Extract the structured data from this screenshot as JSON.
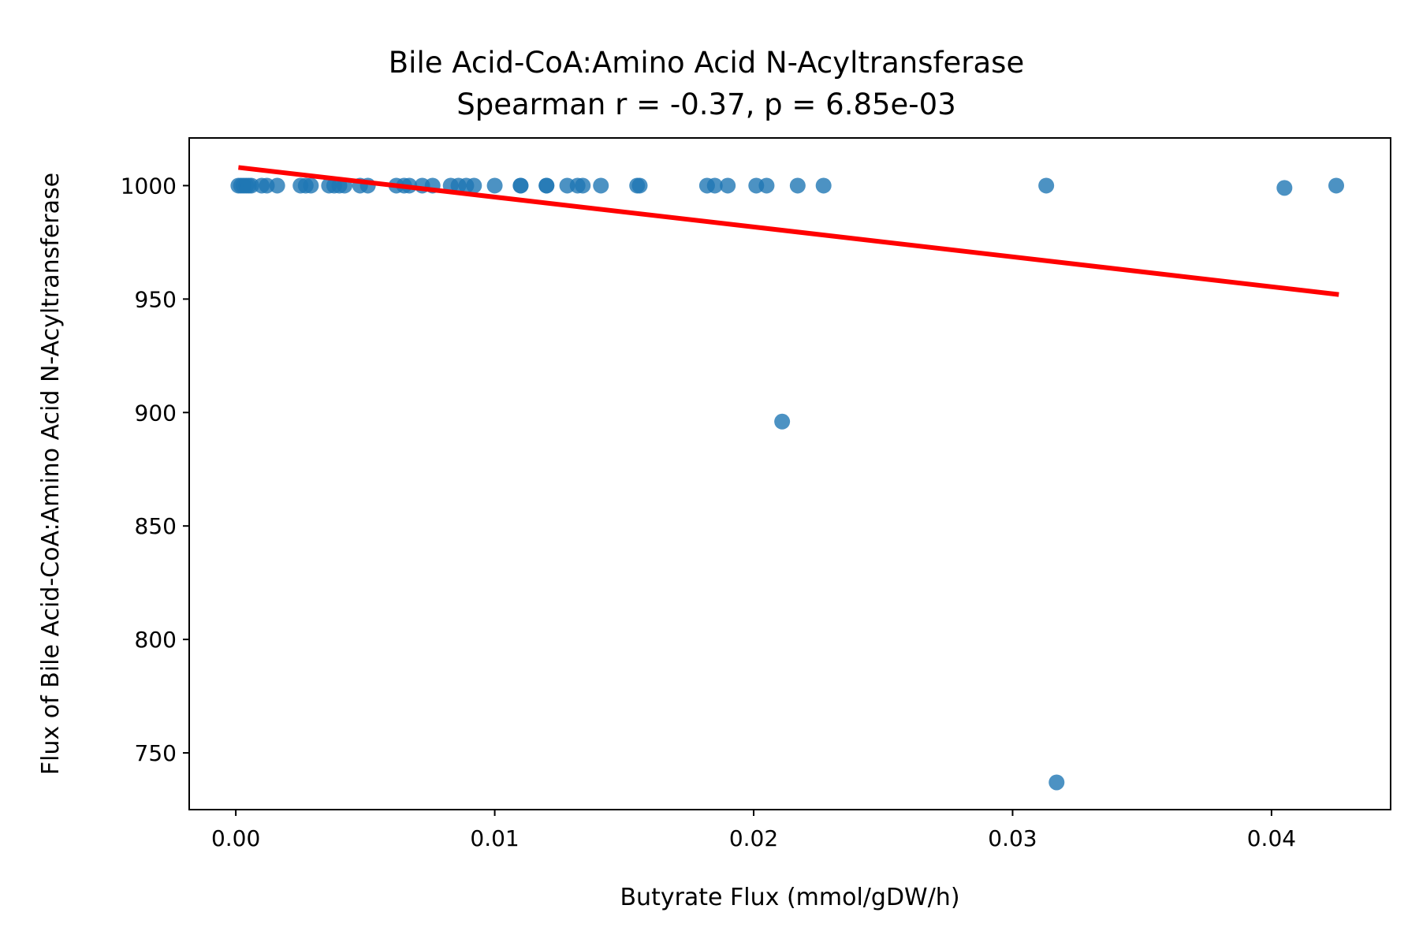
{
  "chart_data": {
    "type": "scatter",
    "title": "Bile Acid-CoA:Amino Acid N-Acyltransferase",
    "subtitle": "Spearman r = -0.37, p = 6.85e-03",
    "xlabel": "Butyrate Flux (mmol/gDW/h)",
    "ylabel": "Flux of Bile Acid-CoA:Amino Acid N-Acyltransferase",
    "xlim": [
      -0.0018,
      0.0446
    ],
    "ylim": [
      725,
      1021
    ],
    "xticks": [
      0.0,
      0.01,
      0.02,
      0.03,
      0.04
    ],
    "xtick_labels": [
      "0.00",
      "0.01",
      "0.02",
      "0.03",
      "0.04"
    ],
    "yticks": [
      750,
      800,
      850,
      900,
      950,
      1000
    ],
    "ytick_labels": [
      "750",
      "800",
      "850",
      "900",
      "950",
      "1000"
    ],
    "grid": false,
    "points": {
      "x": [
        0.0001,
        0.0002,
        0.0003,
        0.0004,
        0.0005,
        0.0006,
        0.001,
        0.0012,
        0.0016,
        0.0025,
        0.0027,
        0.0029,
        0.0036,
        0.0038,
        0.004,
        0.0042,
        0.0048,
        0.0051,
        0.0062,
        0.0065,
        0.0067,
        0.0072,
        0.0076,
        0.0083,
        0.0086,
        0.0089,
        0.0092,
        0.01,
        0.011,
        0.011,
        0.012,
        0.012,
        0.0128,
        0.0132,
        0.0134,
        0.0141,
        0.0155,
        0.0156,
        0.0182,
        0.0185,
        0.019,
        0.0201,
        0.0205,
        0.0217,
        0.0227,
        0.0313,
        0.0405,
        0.0425,
        0.0211,
        0.0317
      ],
      "y": [
        1000,
        1000,
        1000,
        1000,
        1000,
        1000,
        1000,
        1000,
        1000,
        1000,
        1000,
        1000,
        1000,
        1000,
        1000,
        1000,
        1000,
        1000,
        1000,
        1000,
        1000,
        1000,
        1000,
        1000,
        1000,
        1000,
        1000,
        1000,
        1000,
        1000,
        1000,
        1000,
        1000,
        1000,
        1000,
        1000,
        1000,
        1000,
        1000,
        1000,
        1000,
        1000,
        1000,
        1000,
        1000,
        1000,
        999,
        1000,
        896,
        737
      ]
    },
    "trend_line": {
      "x": [
        0.0001,
        0.0426
      ],
      "y": [
        1008,
        952
      ]
    },
    "colors": {
      "points": "#1f77b4",
      "trend_line": "#ff0000"
    }
  }
}
